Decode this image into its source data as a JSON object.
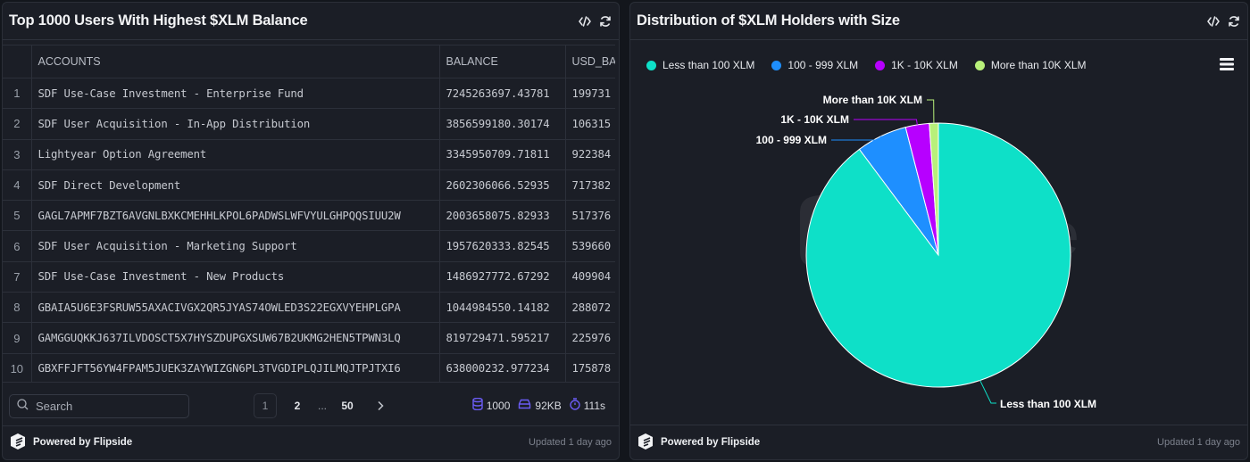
{
  "left_panel": {
    "title": "Top 1000 Users With Highest $XLM Balance",
    "icons": [
      "code-icon",
      "refresh-icon"
    ],
    "table": {
      "columns": [
        "",
        "ACCOUNTS",
        "BALANCE",
        "USD_BA"
      ],
      "rows": [
        {
          "idx": "1",
          "account": "SDF Use-Case Investment - Enterprise Fund",
          "balance": "7245263697.43781",
          "usd": "199731"
        },
        {
          "idx": "2",
          "account": "SDF User Acquisition - In-App Distribution",
          "balance": "3856599180.30174",
          "usd": "106315"
        },
        {
          "idx": "3",
          "account": "Lightyear Option Agreement",
          "balance": "3345950709.71811",
          "usd": "922384"
        },
        {
          "idx": "4",
          "account": "SDF Direct Development",
          "balance": "2602306066.52935",
          "usd": "717382"
        },
        {
          "idx": "5",
          "account": "GAGL7APMF7BZT6AVGNLBXKCMEHHLKPOL6PADWSLWFVYULGHPQQSIUU2W",
          "balance": "2003658075.82933",
          "usd": "517376"
        },
        {
          "idx": "6",
          "account": "SDF User Acquisition - Marketing Support",
          "balance": "1957620333.82545",
          "usd": "539660"
        },
        {
          "idx": "7",
          "account": "SDF Use-Case Investment - New Products",
          "balance": "1486927772.67292",
          "usd": "409904"
        },
        {
          "idx": "8",
          "account": "GBAIA5U6E3FSRUW55AXACIVGX2QR5JYAS74OWLED3S22EGXVYEHPLGPA",
          "balance": "1044984550.14182",
          "usd": "288072"
        },
        {
          "idx": "9",
          "account": "GAMGGUQKKJ637ILVDOSCT5X7HYSZDUPGXSUW67B2UKMG2HEN5TPWN3LQ",
          "balance": "819729471.595217",
          "usd": "225976"
        },
        {
          "idx": "10",
          "account": "GBXFFJFT56YW4FPAM5JUEK3ZAYWIZGN6PL3TVGDIPLQJILMQJTPJTXI6",
          "balance": "638000232.977234",
          "usd": "175878"
        }
      ]
    },
    "search": {
      "placeholder": "Search",
      "value": ""
    },
    "pagination": {
      "pages": [
        "1",
        "2",
        "50"
      ],
      "ellipsis": "...",
      "current": "1"
    },
    "stats": {
      "rows": "1000",
      "size": "92KB",
      "time": "111s"
    },
    "footer": {
      "brand": "Powered by Flipside",
      "updated": "Updated 1 day ago"
    }
  },
  "right_panel": {
    "title": "Distribution of $XLM Holders with Size",
    "icons": [
      "code-icon",
      "refresh-icon"
    ],
    "legend": [
      {
        "label": "Less than 100 XLM",
        "color": "#0ee0c8"
      },
      {
        "label": "100 - 999 XLM",
        "color": "#1e8fff"
      },
      {
        "label": "1K - 10K XLM",
        "color": "#b700ff"
      },
      {
        "label": "More than 10K XLM",
        "color": "#b8f07a"
      }
    ],
    "footer": {
      "brand": "Powered by Flipside",
      "updated": "Updated 1 day ago"
    }
  },
  "chart_data": {
    "type": "pie",
    "title": "Distribution of $XLM Holders with Size",
    "categories": [
      "Less than 100 XLM",
      "100 - 999 XLM",
      "1K - 10K XLM",
      "More than 10K XLM"
    ],
    "values": [
      89.8,
      6.2,
      2.9,
      1.1
    ],
    "unit": "% of holders (estimated from slice angles)",
    "colors": [
      "#0ee0c8",
      "#1e8fff",
      "#b700ff",
      "#b8f07a"
    ],
    "legend_position": "top-left",
    "data_labels": true
  }
}
